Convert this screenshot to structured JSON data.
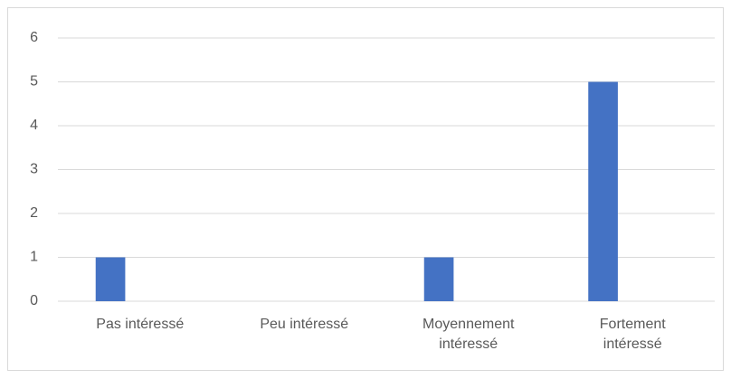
{
  "chart_data": {
    "type": "bar",
    "categories": [
      "Pas intéressé",
      "Peu intéressé",
      "Moyennement intéressé",
      "Fortement intéressé"
    ],
    "values": [
      1,
      0,
      1,
      5
    ],
    "color": "#4472c4",
    "ylim": [
      0,
      6
    ],
    "yticks": [
      0,
      1,
      2,
      3,
      4,
      5,
      6
    ],
    "grid": true
  }
}
